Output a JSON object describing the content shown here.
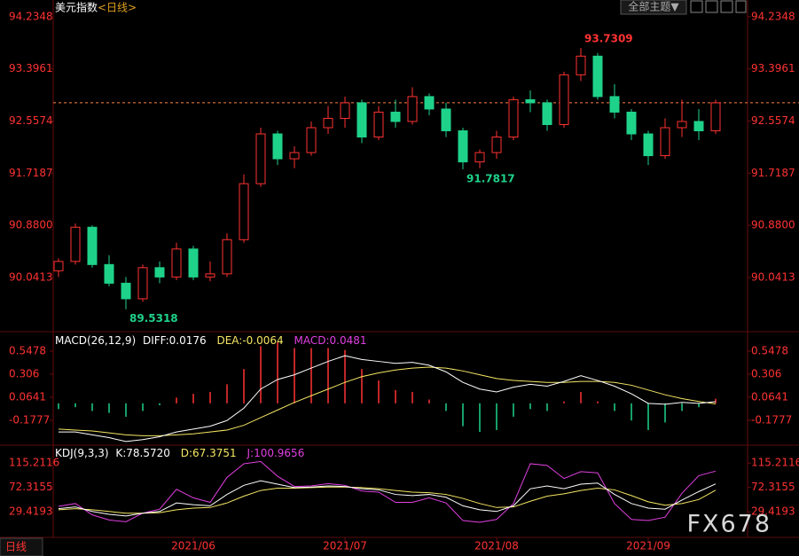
{
  "chart_data": {
    "type": "candlestick",
    "title": "美元指数",
    "subtitle": "<日线>",
    "theme_button": "全部主题▼",
    "tab": "日线",
    "watermark": "FX678",
    "up_color": "#ff3232",
    "down_color": "#1fd28a",
    "open": [
      90.15,
      90.3,
      90.85,
      90.25,
      89.95,
      89.7,
      90.2,
      90.05,
      90.5,
      90.05,
      90.1,
      90.65,
      91.55,
      92.35,
      91.95,
      92.05,
      92.45,
      92.6,
      92.85,
      92.3,
      92.7,
      92.55,
      92.95,
      92.75,
      92.4,
      91.9,
      92.05,
      92.3,
      92.9,
      92.85,
      92.5,
      93.3,
      93.6,
      92.95,
      92.7,
      92.35,
      92.0,
      92.45,
      92.55,
      92.4
    ],
    "high": [
      90.35,
      90.9106,
      90.88,
      90.4,
      90.05,
      90.25,
      90.3,
      90.6,
      90.55,
      90.3,
      90.75,
      91.7,
      92.45,
      92.4,
      92.15,
      92.55,
      92.8,
      92.95,
      92.9,
      92.8,
      92.9,
      93.1,
      93.0,
      92.85,
      92.45,
      92.1,
      92.4,
      92.95,
      93.05,
      92.9,
      93.35,
      93.7309,
      93.65,
      93.15,
      92.75,
      92.4,
      92.6,
      92.9,
      92.75,
      92.9
    ],
    "low": [
      90.05,
      90.25,
      90.2,
      89.9,
      89.5318,
      89.65,
      89.95,
      90.0,
      90.0,
      89.98,
      90.05,
      90.6,
      91.5,
      91.85,
      91.8,
      92.0,
      92.35,
      92.45,
      92.2,
      92.25,
      92.45,
      92.5,
      92.65,
      92.3,
      91.7817,
      91.8,
      91.95,
      92.25,
      92.7,
      92.4,
      92.45,
      93.2,
      92.9,
      92.6,
      92.25,
      91.85,
      91.95,
      92.3,
      92.25,
      92.35
    ],
    "close": [
      90.3,
      90.85,
      90.25,
      89.95,
      89.7,
      90.2,
      90.05,
      90.5,
      90.05,
      90.1,
      90.65,
      91.55,
      92.35,
      91.95,
      92.05,
      92.45,
      92.6,
      92.85,
      92.3,
      92.7,
      92.55,
      92.95,
      92.75,
      92.4,
      91.9,
      92.05,
      92.3,
      92.9,
      92.85,
      92.5,
      93.3,
      93.6,
      92.95,
      92.7,
      92.35,
      92.0,
      92.45,
      92.55,
      92.4,
      92.85
    ],
    "ylim": [
      89.2,
      94.36
    ],
    "yticks": [
      94.2348,
      93.3961,
      92.5574,
      91.7187,
      {
        "value": 90.88,
        "label": "90.8800"
      },
      90.0413
    ],
    "xticks": [
      {
        "value": 8,
        "label": "2021/06"
      },
      {
        "value": 17,
        "label": "2021/07"
      },
      {
        "value": 26,
        "label": "2021/08"
      },
      {
        "value": 35,
        "label": "2021/09"
      }
    ],
    "macd": {
      "header": "MACD(26,12,9)",
      "diff_label": "DIFF:0.0176",
      "dea_label": "DEA:-0.0064",
      "macd_label": "MACD:0.0481",
      "diff": {
        "color": "#ffffff",
        "values": [
          -0.3,
          -0.3,
          -0.33,
          -0.36,
          -0.4,
          -0.38,
          -0.35,
          -0.3,
          -0.27,
          -0.24,
          -0.18,
          -0.05,
          0.15,
          0.25,
          0.3,
          0.37,
          0.44,
          0.5,
          0.46,
          0.44,
          0.42,
          0.43,
          0.4,
          0.33,
          0.22,
          0.15,
          0.12,
          0.17,
          0.2,
          0.18,
          0.23,
          0.29,
          0.24,
          0.18,
          0.1,
          0.0,
          -0.01,
          0.01,
          0.0,
          0.0176
        ]
      },
      "dea": {
        "color": "#f5e663",
        "values": [
          -0.27,
          -0.28,
          -0.29,
          -0.31,
          -0.33,
          -0.34,
          -0.34,
          -0.33,
          -0.32,
          -0.3,
          -0.28,
          -0.23,
          -0.15,
          -0.07,
          0.01,
          0.08,
          0.15,
          0.22,
          0.28,
          0.32,
          0.35,
          0.37,
          0.38,
          0.37,
          0.34,
          0.3,
          0.26,
          0.24,
          0.23,
          0.22,
          0.22,
          0.23,
          0.23,
          0.22,
          0.19,
          0.14,
          0.09,
          0.05,
          0.02,
          -0.0064
        ]
      },
      "hist": {
        "color": "#e040e0",
        "values": [
          -0.06,
          -0.04,
          -0.08,
          -0.1,
          -0.14,
          -0.08,
          -0.02,
          0.06,
          0.1,
          0.12,
          0.2,
          0.36,
          0.6,
          0.64,
          0.58,
          0.58,
          0.58,
          0.56,
          0.36,
          0.24,
          0.14,
          0.12,
          0.04,
          -0.08,
          -0.24,
          -0.3,
          -0.28,
          -0.14,
          -0.06,
          -0.08,
          0.02,
          0.12,
          0.02,
          -0.08,
          -0.18,
          -0.28,
          -0.2,
          -0.08,
          -0.04,
          0.0481
        ]
      },
      "ylim": [
        -0.42,
        0.715
      ],
      "yticks": [
        0.5478,
        0.306,
        0.0641,
        -0.1777
      ]
    },
    "kdj": {
      "header": "KDJ(9,3,3)",
      "k_label": "K:78.5720",
      "d_label": "D:67.3751",
      "j_label": "J:100.9656",
      "k": {
        "color": "#ffffff",
        "values": [
          35,
          38,
          30,
          25,
          22,
          27,
          30,
          45,
          42,
          40,
          60,
          76,
          84,
          78,
          72,
          73,
          75,
          74,
          70,
          68,
          60,
          58,
          60,
          55,
          40,
          33,
          30,
          40,
          70,
          75,
          70,
          78,
          80,
          60,
          44,
          36,
          34,
          50,
          65,
          78.572
        ]
      },
      "d": {
        "color": "#f5e663",
        "values": [
          33,
          35,
          33,
          30,
          27,
          27,
          28,
          33,
          36,
          37,
          45,
          57,
          67,
          71,
          71,
          72,
          73,
          73,
          72,
          70,
          67,
          64,
          63,
          60,
          53,
          44,
          37,
          38,
          48,
          57,
          61,
          67,
          71,
          68,
          58,
          47,
          41,
          44,
          51,
          67.3751
        ]
      },
      "j": {
        "color": "#e040e0",
        "values": [
          39,
          44,
          24,
          15,
          12,
          27,
          34,
          69,
          54,
          46,
          90,
          114,
          118,
          92,
          74,
          75,
          79,
          76,
          66,
          64,
          46,
          46,
          54,
          45,
          14,
          11,
          16,
          44,
          114,
          111,
          88,
          100,
          98,
          44,
          16,
          14,
          20,
          62,
          93,
          100.9656
        ]
      },
      "ylim": [
        -14,
        142
      ],
      "yticks": [
        115.2116,
        72.3155,
        29.4193
      ]
    }
  }
}
